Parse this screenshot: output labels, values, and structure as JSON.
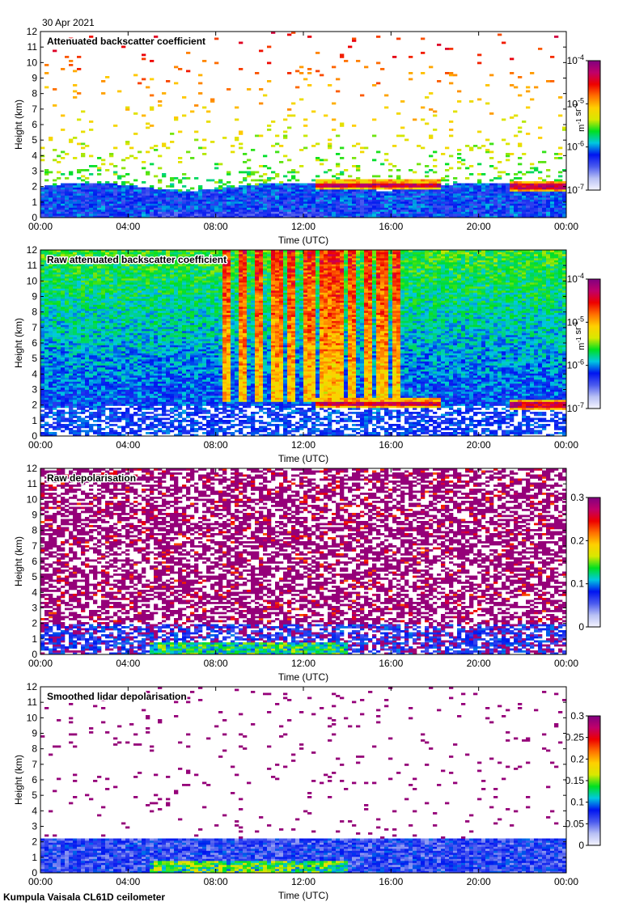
{
  "header": {
    "date": "30 Apr 2021"
  },
  "footer": {
    "instrument": "Kumpula Vaisala CL61D ceilometer"
  },
  "colormap": [
    "#f4f4ff",
    "#b8c0f4",
    "#4a5aee",
    "#0014f0",
    "#00c8e0",
    "#00e020",
    "#d8e800",
    "#ffd000",
    "#ff7000",
    "#ee0000",
    "#c0006a",
    "#800080"
  ],
  "chart_data": [
    {
      "type": "heatmap",
      "title": "Attenuated backscatter coefficient",
      "xlabel": "Time (UTC)",
      "ylabel": "Height (km)",
      "xticks": [
        "00:00",
        "04:00",
        "08:00",
        "12:00",
        "16:00",
        "20:00",
        "00:00"
      ],
      "xlim": [
        0,
        24
      ],
      "ylim": [
        0,
        12
      ],
      "yticks": [
        0,
        1,
        2,
        3,
        4,
        5,
        6,
        7,
        8,
        9,
        10,
        11,
        12
      ],
      "colorbar": {
        "scale": "log",
        "range": [
          1e-07,
          0.0001
        ],
        "ticks": [
          {
            "base": "10",
            "exp": "-4"
          },
          {
            "base": "10",
            "exp": "-5"
          },
          {
            "base": "10",
            "exp": "-6"
          },
          {
            "base": "10",
            "exp": "-7"
          }
        ],
        "unit": [
          {
            "base": "m",
            "exp": "-1"
          },
          {
            "base": " sr",
            "exp": "-1"
          }
        ]
      },
      "field": "backscatter_filtered",
      "features": {
        "boundary_layer_top_km": 2.0,
        "cloud_layers": [
          {
            "t_start": 12.5,
            "t_end": 18.3,
            "height_km": 2.1
          },
          {
            "t_start": 21.5,
            "t_end": 24.0,
            "height_km": 2.0
          }
        ]
      }
    },
    {
      "type": "heatmap",
      "title": "Raw attenuated backscatter coefficient",
      "xlabel": "Time (UTC)",
      "ylabel": "Height (km)",
      "xticks": [
        "00:00",
        "04:00",
        "08:00",
        "12:00",
        "16:00",
        "20:00",
        "00:00"
      ],
      "xlim": [
        0,
        24
      ],
      "ylim": [
        0,
        12
      ],
      "yticks": [
        0,
        1,
        2,
        3,
        4,
        5,
        6,
        7,
        8,
        9,
        10,
        11,
        12
      ],
      "colorbar": {
        "scale": "log",
        "range": [
          1e-07,
          0.0001
        ],
        "ticks": [
          {
            "base": "10",
            "exp": "-4"
          },
          {
            "base": "10",
            "exp": "-5"
          },
          {
            "base": "10",
            "exp": "-6"
          },
          {
            "base": "10",
            "exp": "-7"
          }
        ],
        "unit": [
          {
            "base": "m",
            "exp": "-1"
          },
          {
            "base": " sr",
            "exp": "-1"
          }
        ]
      },
      "field": "backscatter_raw",
      "features": {
        "boundary_layer_top_km": 2.0,
        "noisy_columns_t": [
          8.5,
          9.2,
          10.0,
          10.8,
          11.5,
          12.3,
          13.0,
          13.6,
          14.2,
          15.0,
          15.6,
          16.2
        ],
        "cloud_layers": [
          {
            "t_start": 12.5,
            "t_end": 18.3,
            "height_km": 2.1
          },
          {
            "t_start": 21.5,
            "t_end": 24.0,
            "height_km": 2.0
          }
        ]
      }
    },
    {
      "type": "heatmap",
      "title": "Raw depolarisation",
      "xlabel": "Time (UTC)",
      "ylabel": "Height (km)",
      "xticks": [
        "00:00",
        "04:00",
        "08:00",
        "12:00",
        "16:00",
        "20:00",
        "00:00"
      ],
      "xlim": [
        0,
        24
      ],
      "ylim": [
        0,
        12
      ],
      "yticks": [
        0,
        1,
        2,
        3,
        4,
        5,
        6,
        7,
        8,
        9,
        10,
        11,
        12
      ],
      "colorbar": {
        "scale": "linear",
        "range": [
          0,
          0.3
        ],
        "ticks": [
          "0.3",
          "0.2",
          "0.1",
          "0"
        ]
      },
      "field": "depol_raw",
      "features": {
        "boundary_layer_top_km": 2.0
      }
    },
    {
      "type": "heatmap",
      "title": "Smoothed lidar depolarisation",
      "xlabel": "Time (UTC)",
      "ylabel": "Height (km)",
      "xticks": [
        "00:00",
        "04:00",
        "08:00",
        "12:00",
        "16:00",
        "20:00",
        "00:00"
      ],
      "xlim": [
        0,
        24
      ],
      "ylim": [
        0,
        12
      ],
      "yticks": [
        0,
        1,
        2,
        3,
        4,
        5,
        6,
        7,
        8,
        9,
        10,
        11,
        12
      ],
      "colorbar": {
        "scale": "linear",
        "range": [
          0,
          0.3
        ],
        "ticks": [
          "0.3",
          "0.25",
          "0.2",
          "0.15",
          "0.1",
          "0.05",
          "0"
        ]
      },
      "field": "depol_smoothed",
      "features": {
        "boundary_layer_top_km": 2.0
      }
    }
  ]
}
